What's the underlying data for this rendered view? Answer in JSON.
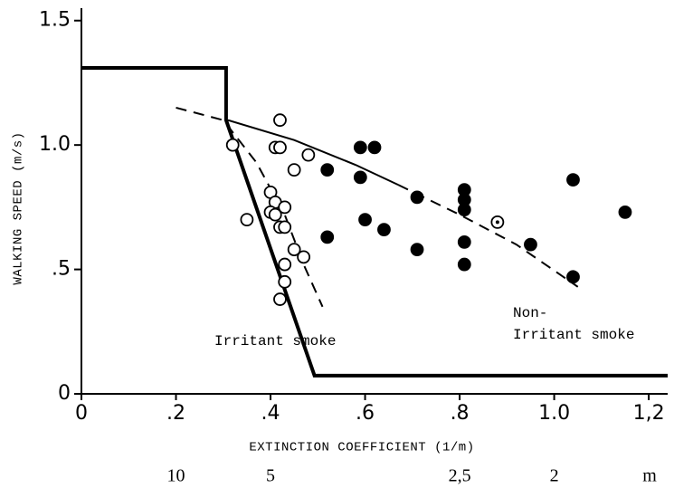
{
  "chart_data": {
    "type": "scatter",
    "x_label": "EXTINCTION COEFFICIENT (1/m)",
    "y_label": "WALKING SPEED (m/s)",
    "xlim": [
      0,
      1.24
    ],
    "ylim": [
      0,
      1.55
    ],
    "xticks": [
      0,
      {
        "value": 0.2,
        "label": ".2"
      },
      {
        "value": 0.4,
        "label": ".4"
      },
      {
        "value": 0.6,
        "label": ".6"
      },
      {
        "value": 0.8,
        "label": ".8"
      },
      {
        "value": 1.0,
        "label": "1.0"
      },
      {
        "value": 1.2,
        "label": "1,2"
      }
    ],
    "yticks": [
      0,
      {
        "value": 0.5,
        "label": ".5"
      },
      {
        "value": 1.0,
        "label": "1.0"
      },
      {
        "value": 1.5,
        "label": "1.5"
      }
    ],
    "x2ticks": [
      {
        "value": 0.2,
        "label": "10"
      },
      {
        "value": 0.4,
        "label": "5"
      },
      {
        "value": 0.8,
        "label": "2,5"
      },
      {
        "value": 1.0,
        "label": "2"
      }
    ],
    "x2_unit": "m",
    "annotations": [
      "Irritant smoke",
      "Non-",
      "Irritant smoke"
    ],
    "series": [
      {
        "marker": "open",
        "color": "#000000",
        "x": [
          0.32,
          0.42,
          0.41,
          0.42,
          0.48,
          0.45,
          0.35,
          0.4,
          0.41,
          0.4,
          0.41,
          0.43,
          0.42,
          0.43,
          0.45,
          0.47,
          0.43,
          0.43,
          0.42
        ],
        "values": [
          1.0,
          1.1,
          0.99,
          0.99,
          0.96,
          0.9,
          0.7,
          0.81,
          0.77,
          0.73,
          0.72,
          0.75,
          0.67,
          0.67,
          0.58,
          0.55,
          0.52,
          0.45,
          0.38
        ]
      },
      {
        "marker": "filled",
        "color": "#000000",
        "x": [
          0.52,
          0.59,
          0.62,
          0.59,
          0.71,
          0.81,
          0.81,
          0.81,
          1.04,
          1.15,
          0.6,
          0.64,
          0.52,
          0.71,
          0.81,
          0.81,
          0.95,
          1.04
        ],
        "values": [
          0.9,
          0.99,
          0.99,
          0.87,
          0.79,
          0.82,
          0.78,
          0.74,
          0.86,
          0.73,
          0.7,
          0.66,
          0.63,
          0.58,
          0.61,
          0.52,
          0.6,
          0.47
        ]
      },
      {
        "marker": "dotted",
        "color": "#000000",
        "x": [
          0.88
        ],
        "values": [
          0.69
        ]
      }
    ],
    "lines": [
      {
        "style": "thick",
        "x": [
          0,
          0.306,
          0.306,
          0.493,
          1.24
        ],
        "values": [
          1.31,
          1.31,
          1.1,
          0.073,
          0.073
        ]
      },
      {
        "style": "solid",
        "x": [
          0.31,
          0.45,
          0.58,
          0.67
        ],
        "values": [
          1.1,
          1.02,
          0.92,
          0.84
        ]
      },
      {
        "style": "dashed",
        "x": [
          0.67,
          0.8,
          0.92,
          1.05
        ],
        "values": [
          0.84,
          0.72,
          0.6,
          0.43
        ]
      },
      {
        "style": "dashed",
        "x": [
          0.2,
          0.3,
          0.37,
          0.43,
          0.47,
          0.51
        ],
        "values": [
          1.15,
          1.1,
          0.93,
          0.72,
          0.52,
          0.35
        ]
      }
    ]
  }
}
